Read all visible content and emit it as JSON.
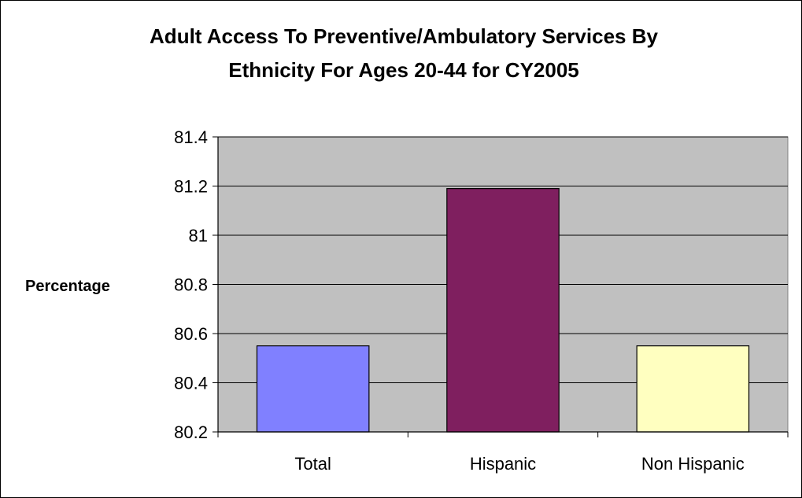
{
  "chart_data": {
    "type": "bar",
    "title_lines": [
      "Adult Access To Preventive/Ambulatory Services By",
      "Ethnicity For Ages 20-44 for CY2005"
    ],
    "ylabel": "Percentage",
    "xlabel": "",
    "categories": [
      "Total",
      "Hispanic",
      "Non Hispanic"
    ],
    "values": [
      80.55,
      81.19,
      80.55
    ],
    "ylim": [
      80.2,
      81.4
    ],
    "yticks": [
      "81.4",
      "81.2",
      "81",
      "80.8",
      "80.6",
      "80.4",
      "80.2"
    ],
    "colors": [
      "#8080FF",
      "#7F1F5F",
      "#FFFFC0"
    ],
    "plot_background": "#C0C0C0",
    "grid": true,
    "legend": "none"
  }
}
